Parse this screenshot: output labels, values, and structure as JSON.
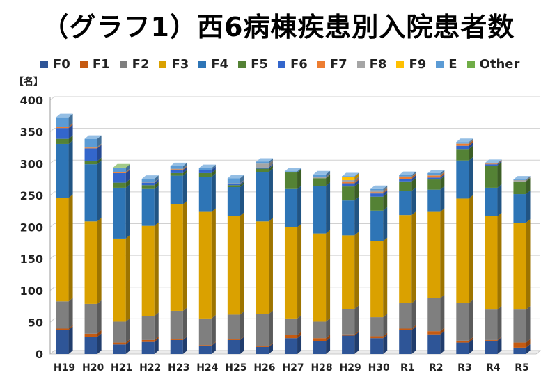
{
  "chart_data": {
    "type": "bar",
    "stacked": true,
    "style": "3d-column",
    "title": "（グラフ1）西6病棟疾患別入院患者数",
    "ylabel": "【名】",
    "xlabel": "",
    "ylim": [
      0,
      400
    ],
    "yticks": [
      "0",
      "50",
      "100",
      "150",
      "200",
      "250",
      "300",
      "350",
      "400"
    ],
    "grid": true,
    "legend_position": "top",
    "categories": [
      "H19",
      "H20",
      "H21",
      "H22",
      "H23",
      "H24",
      "H25",
      "H26",
      "H27",
      "H28",
      "H29",
      "H30",
      "R1",
      "R2",
      "R3",
      "R4",
      "R5"
    ],
    "series": [
      {
        "name": "F0",
        "color": "#2E5597",
        "values": [
          38,
          27,
          15,
          19,
          22,
          13,
          22,
          11,
          25,
          20,
          29,
          25,
          38,
          31,
          18,
          21,
          10
        ]
      },
      {
        "name": "F1",
        "color": "#C55A11",
        "values": [
          2,
          5,
          3,
          3,
          1,
          1,
          1,
          1,
          5,
          5,
          2,
          3,
          2,
          5,
          3,
          1,
          8
        ]
      },
      {
        "name": "F2",
        "color": "#7F7F7F",
        "values": [
          43,
          47,
          33,
          38,
          45,
          42,
          39,
          51,
          26,
          26,
          40,
          30,
          40,
          52,
          59,
          48,
          52
        ]
      },
      {
        "name": "F3",
        "color": "#DAA100",
        "values": [
          163,
          130,
          131,
          142,
          168,
          168,
          156,
          146,
          144,
          139,
          116,
          120,
          139,
          136,
          165,
          147,
          137
        ]
      },
      {
        "name": "F4",
        "color": "#2E75B6",
        "values": [
          85,
          90,
          80,
          58,
          45,
          55,
          45,
          78,
          60,
          75,
          55,
          48,
          38,
          35,
          60,
          45,
          45
        ]
      },
      {
        "name": "F5",
        "color": "#548235",
        "values": [
          8,
          5,
          8,
          6,
          4,
          6,
          3,
          5,
          26,
          12,
          22,
          22,
          15,
          16,
          18,
          35,
          20
        ]
      },
      {
        "name": "F6",
        "color": "#3366CC",
        "values": [
          17,
          20,
          15,
          4,
          5,
          5,
          2,
          2,
          0,
          0,
          5,
          5,
          4,
          3,
          5,
          2,
          0
        ]
      },
      {
        "name": "F7",
        "color": "#ED7D31",
        "values": [
          2,
          1,
          1,
          0,
          1,
          0,
          0,
          0,
          0,
          0,
          2,
          2,
          3,
          3,
          3,
          1,
          0
        ]
      },
      {
        "name": "F8",
        "color": "#A5A5A5",
        "values": [
          0,
          1,
          1,
          1,
          1,
          0,
          1,
          6,
          0,
          2,
          3,
          3,
          1,
          1,
          2,
          0,
          2
        ]
      },
      {
        "name": "F9",
        "color": "#FFC000",
        "values": [
          0,
          0,
          0,
          0,
          0,
          0,
          0,
          0,
          0,
          0,
          5,
          0,
          0,
          0,
          0,
          0,
          0
        ]
      },
      {
        "name": "E",
        "color": "#5B9BD5",
        "values": [
          15,
          13,
          6,
          5,
          4,
          3,
          8,
          3,
          2,
          4,
          1,
          2,
          2,
          3,
          1,
          1,
          1
        ]
      },
      {
        "name": "Other",
        "color": "#70AD47",
        "values": [
          0,
          0,
          1,
          0,
          0,
          0,
          0,
          0,
          0,
          0,
          0,
          0,
          0,
          0,
          0,
          0,
          0
        ]
      }
    ]
  }
}
